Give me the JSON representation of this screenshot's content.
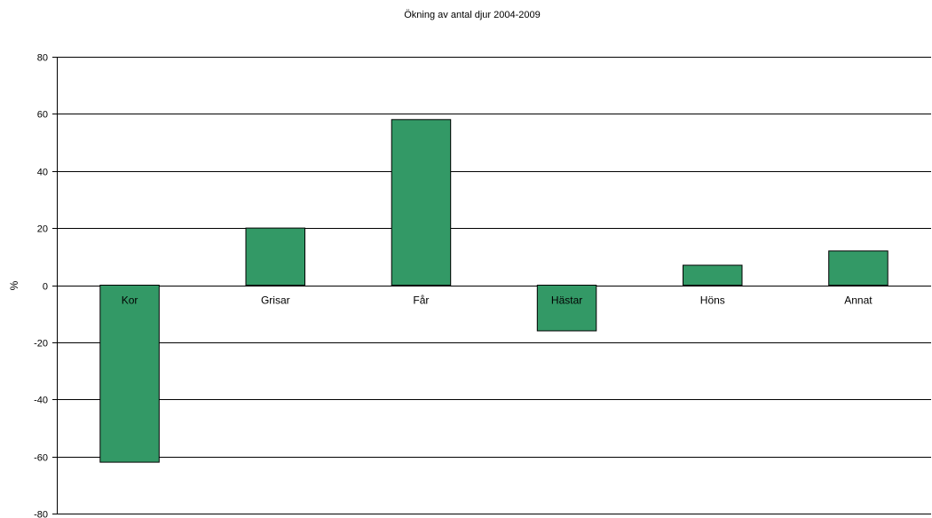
{
  "chart_data": {
    "type": "bar",
    "title": "Ökning av antal djur 2004-2009",
    "xlabel": "",
    "ylabel": "%",
    "categories": [
      "Kor",
      "Grisar",
      "Får",
      "Hästar",
      "Höns",
      "Annat"
    ],
    "values": [
      -62,
      20,
      58,
      -16,
      7,
      12
    ],
    "ylim": [
      -80,
      80
    ],
    "yticks": [
      -80,
      -60,
      -40,
      -20,
      0,
      20,
      40,
      60,
      80
    ],
    "grid": true,
    "legend": "none",
    "bar_color": "#339966",
    "bar_edge_color": "#000000"
  }
}
